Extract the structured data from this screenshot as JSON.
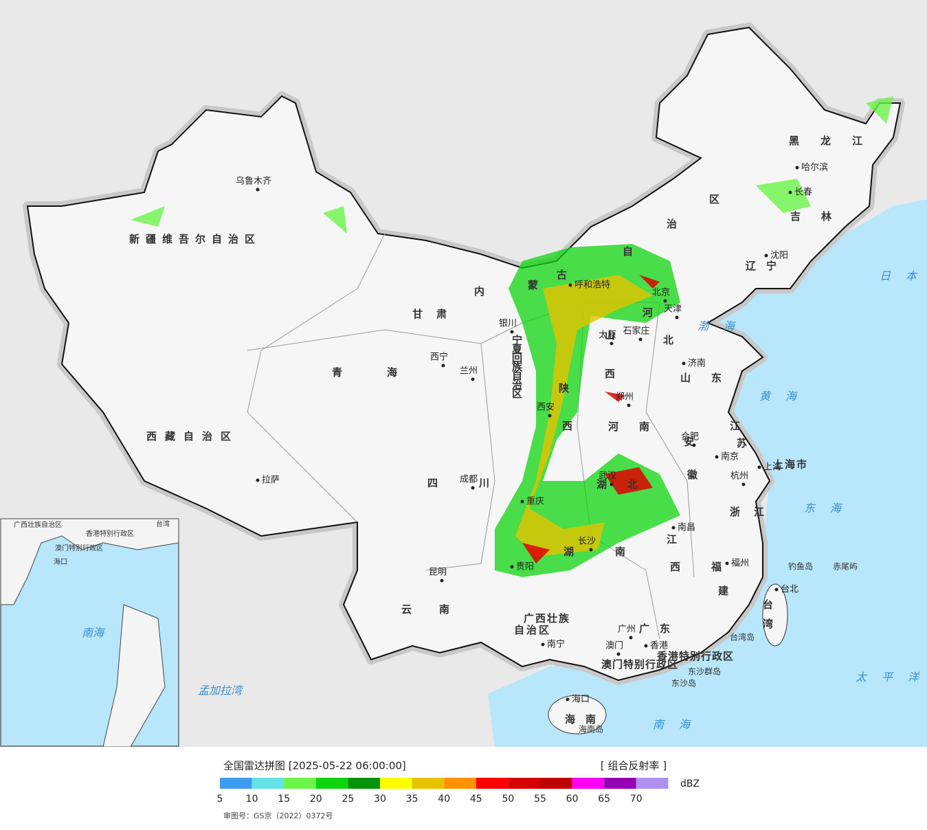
{
  "map": {
    "provinces": [
      "新疆维吾尔自治区",
      "西藏自治区",
      "青海",
      "甘肃",
      "内蒙古自治区",
      "黑龙江",
      "吉林",
      "辽宁",
      "河北",
      "山西",
      "山东",
      "陕西",
      "河南",
      "江苏",
      "安徽",
      "湖北",
      "湖南",
      "江西",
      "浙江",
      "福建",
      "广东",
      "广西壮族自治区",
      "云南",
      "四川",
      "宁夏回族自治区",
      "海南",
      "台湾",
      "上海市",
      "香港特别行政区",
      "澳门特别行政区"
    ],
    "cities": [
      "乌鲁木齐",
      "拉萨",
      "西宁",
      "兰州",
      "银川",
      "呼和浩特",
      "北京",
      "天津",
      "石家庄",
      "太原",
      "济南",
      "郑州",
      "西安",
      "合肥",
      "南京",
      "上海",
      "杭州",
      "武汉",
      "南昌",
      "长沙",
      "福州",
      "成都",
      "重庆",
      "贵阳",
      "昆明",
      "南宁",
      "广州",
      "香港",
      "澳门",
      "台北",
      "海口",
      "哈尔滨",
      "长春",
      "沈阳"
    ],
    "seas": [
      "日本海",
      "渤海",
      "黄海",
      "东海",
      "太平洋",
      "南海",
      "孟加拉湾",
      "钓鱼岛",
      "赤尾屿",
      "台湾岛",
      "东沙群岛",
      "东沙岛",
      "海南岛"
    ],
    "inset": [
      "南海",
      "台湾",
      "海口",
      "广西壮族自治区",
      "香港特别行政区",
      "澳门特别行政区"
    ]
  },
  "legend": {
    "title": "全国雷达拼图 [2025-05-22 06:00:00]",
    "product": "[ 组合反射率 ]",
    "unit": "dBZ",
    "colors": [
      "#3d9cf0",
      "#63e3e8",
      "#6bf54a",
      "#0fd40f",
      "#079307",
      "#ffff00",
      "#e6c300",
      "#ff9200",
      "#ff0000",
      "#d60000",
      "#c00000",
      "#ff00f0",
      "#9600b4",
      "#ad90f0"
    ],
    "ticks": [
      5,
      10,
      15,
      20,
      25,
      30,
      35,
      40,
      45,
      50,
      55,
      60,
      65,
      70
    ]
  },
  "approval": "审图号：GS京（2022）0372号"
}
